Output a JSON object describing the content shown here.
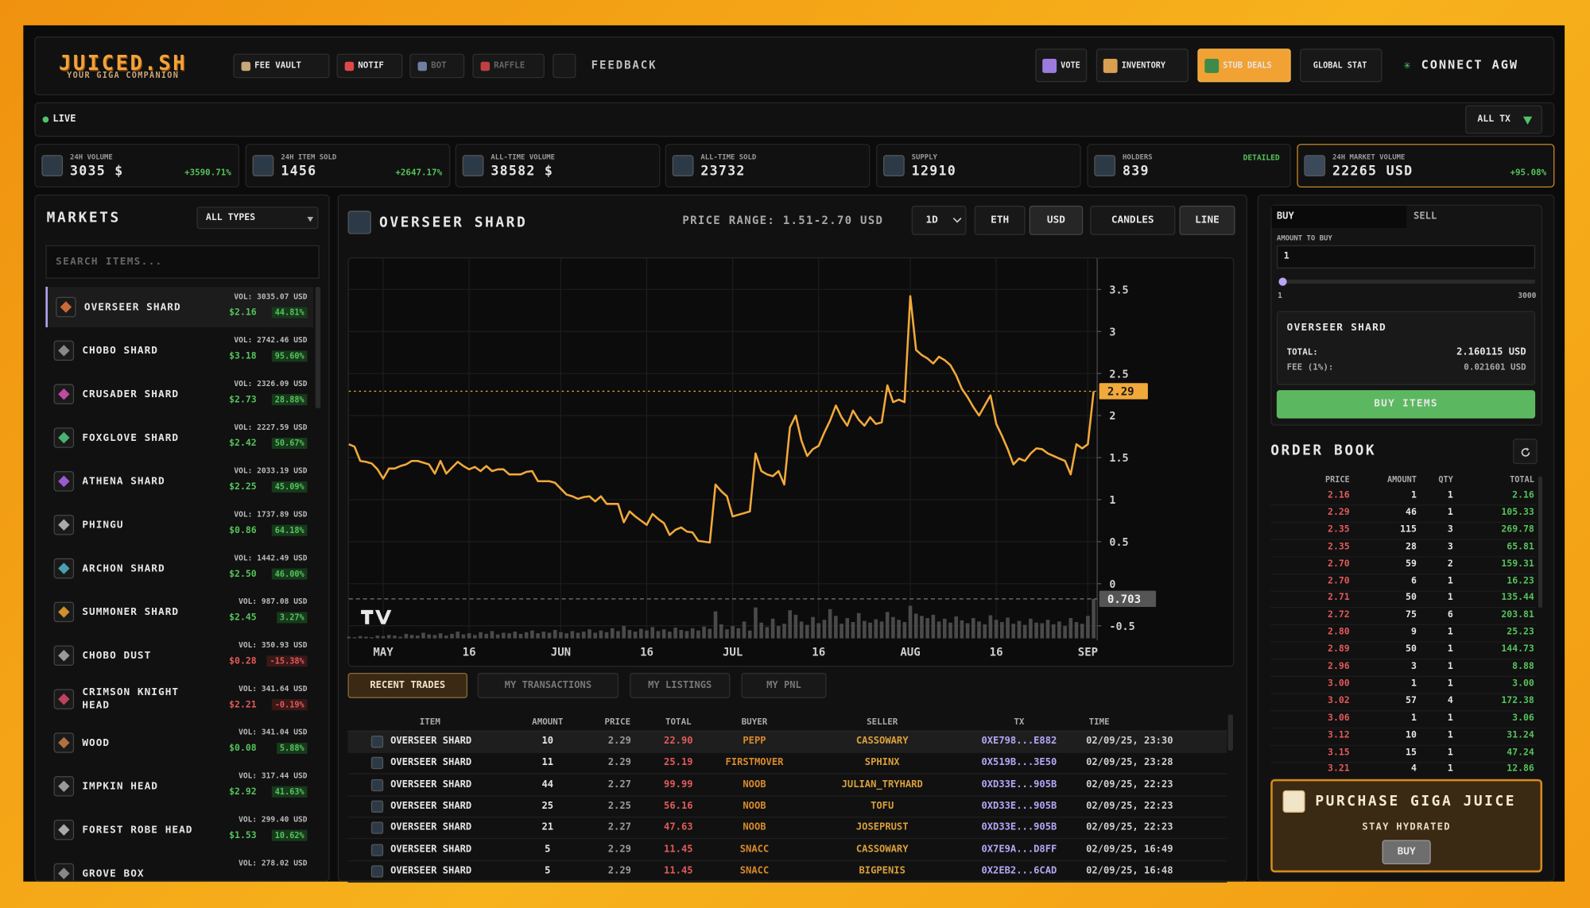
{
  "header": {
    "logo": "JUICED.SH",
    "tagline": "YOUR GIGA COMPANION",
    "nav": [
      "FEE VAULT",
      "NOTIF",
      "BOT",
      "RAFFLE"
    ],
    "feedback": "FEEDBACK",
    "actions": [
      "VOTE",
      "INVENTORY",
      "STUB DEALS",
      "GLOBAL STAT"
    ],
    "connect": "CONNECT AGW"
  },
  "live_bar": {
    "status": "LIVE",
    "filter": "ALL TX"
  },
  "stats": [
    {
      "label": "24H VOLUME",
      "value": "3035 $",
      "change": "+3590.71%"
    },
    {
      "label": "24H ITEM SOLD",
      "value": "1456",
      "change": "+2647.17%"
    },
    {
      "label": "ALL-TIME VOLUME",
      "value": "38582 $"
    },
    {
      "label": "ALL-TIME SOLD",
      "value": "23732"
    },
    {
      "label": "SUPPLY",
      "value": "12910"
    },
    {
      "label": "HOLDERS",
      "value": "839",
      "link": "DETAILED"
    },
    {
      "label": "24H MARKET VOLUME",
      "value": "22265 USD",
      "change": "+95.08%"
    }
  ],
  "markets": {
    "title": "MARKETS",
    "filter": "ALL TYPES",
    "search_placeholder": "SEARCH ITEMS...",
    "items": [
      {
        "name": "OVERSEER SHARD",
        "volume": "VOL: 3035.07 USD",
        "price": "$2.16",
        "change": "44.81%"
      },
      {
        "name": "CHOBO SHARD",
        "volume": "VOL: 2742.46 USD",
        "price": "$3.18",
        "change": "95.60%"
      },
      {
        "name": "CRUSADER SHARD",
        "volume": "VOL: 2326.09 USD",
        "price": "$2.73",
        "change": "28.88%"
      },
      {
        "name": "FOXGLOVE SHARD",
        "volume": "VOL: 2227.59 USD",
        "price": "$2.42",
        "change": "50.67%"
      },
      {
        "name": "ATHENA SHARD",
        "volume": "VOL: 2033.19 USD",
        "price": "$2.25",
        "change": "45.09%"
      },
      {
        "name": "PHINGU",
        "volume": "VOL: 1737.89 USD",
        "price": "$0.86",
        "change": "64.18%"
      },
      {
        "name": "ARCHON SHARD",
        "volume": "VOL: 1442.49 USD",
        "price": "$2.50",
        "change": "46.00%"
      },
      {
        "name": "SUMMONER SHARD",
        "volume": "VOL: 987.08 USD",
        "price": "$2.45",
        "change": "3.27%"
      },
      {
        "name": "CHOBO DUST",
        "volume": "VOL: 350.93 USD",
        "price": "$0.28",
        "change": "-15.38%"
      },
      {
        "name": "CRIMSON KNIGHT HEAD",
        "volume": "VOL: 341.64 USD",
        "price": "$2.21",
        "change": "-0.19%"
      },
      {
        "name": "WOOD",
        "volume": "VOL: 341.04 USD",
        "price": "$0.08",
        "change": "5.88%"
      },
      {
        "name": "IMPKIN HEAD",
        "volume": "VOL: 317.44 USD",
        "price": "$2.92",
        "change": "41.63%"
      },
      {
        "name": "FOREST ROBE HEAD",
        "volume": "VOL: 299.40 USD",
        "price": "$1.53",
        "change": "10.62%"
      },
      {
        "name": "GROVE BOX",
        "volume": "VOL: 278.02 USD"
      }
    ]
  },
  "chart_panel": {
    "interval": "1D",
    "currencies": [
      "ETH",
      "USD"
    ],
    "modes": [
      "CANDLES",
      "LINE"
    ]
  },
  "chart_data": {
    "type": "line",
    "title": "OVERSEER SHARD",
    "subtitle": "PRICE RANGE: 1.51-2.70 USD",
    "categories": [
      null,
      null,
      null,
      null,
      null,
      null,
      "MAY",
      null,
      null,
      null,
      null,
      null,
      null,
      null,
      null,
      null,
      null,
      null,
      null,
      null,
      null,
      "16",
      null,
      null,
      null,
      null,
      null,
      null,
      null,
      null,
      null,
      null,
      null,
      null,
      null,
      null,
      null,
      "JUN",
      null,
      null,
      null,
      null,
      null,
      null,
      null,
      null,
      null,
      null,
      null,
      null,
      null,
      null,
      "16",
      null,
      null,
      null,
      null,
      null,
      null,
      null,
      null,
      null,
      null,
      null,
      null,
      null,
      null,
      "JUL",
      null,
      null,
      null,
      null,
      null,
      null,
      null,
      null,
      null,
      null,
      null,
      null,
      null,
      null,
      "16",
      null,
      null,
      null,
      null,
      null,
      null,
      null,
      null,
      null,
      null,
      null,
      null,
      null,
      null,
      null,
      "AUG",
      null,
      null,
      null,
      null,
      null,
      null,
      null,
      null,
      null,
      null,
      null,
      null,
      null,
      null,
      "16",
      null,
      null,
      null,
      null,
      null,
      null,
      null,
      null,
      null,
      null,
      null,
      null,
      null,
      null,
      null,
      "SEP",
      null
    ],
    "series": [
      {
        "color": "#f2a93b",
        "values": [
          1.66,
          1.63,
          1.46,
          1.45,
          1.43,
          1.36,
          1.25,
          1.37,
          1.37,
          1.4,
          1.42,
          1.46,
          1.46,
          1.44,
          1.42,
          1.31,
          1.46,
          1.31,
          1.38,
          1.45,
          1.4,
          1.36,
          1.39,
          1.34,
          1.4,
          1.34,
          1.36,
          1.36,
          1.3,
          1.3,
          1.3,
          1.33,
          1.34,
          1.22,
          1.22,
          1.22,
          1.2,
          1.13,
          1.06,
          1.04,
          1.01,
          1.03,
          1.04,
          0.98,
          1.04,
          0.95,
          0.95,
          0.95,
          0.73,
          0.86,
          0.8,
          0.75,
          0.7,
          0.83,
          0.77,
          0.72,
          0.58,
          0.64,
          0.67,
          0.62,
          0.61,
          0.51,
          0.5,
          0.49,
          1.18,
          1.1,
          1.04,
          0.8,
          0.82,
          0.84,
          0.86,
          1.55,
          1.34,
          1.3,
          1.28,
          1.34,
          1.18,
          1.86,
          2.0,
          1.7,
          1.52,
          1.6,
          1.64,
          1.8,
          1.94,
          2.12,
          1.98,
          1.88,
          2.06,
          1.95,
          1.88,
          1.98,
          1.9,
          1.92,
          2.36,
          2.16,
          2.19,
          2.16,
          3.42,
          2.78,
          2.72,
          2.68,
          2.62,
          2.7,
          2.66,
          2.6,
          2.48,
          2.32,
          2.22,
          2.1,
          2.0,
          2.12,
          2.24,
          1.9,
          1.76,
          1.6,
          1.42,
          1.49,
          1.46,
          1.55,
          1.61,
          1.6,
          1.55,
          1.52,
          1.49,
          1.46,
          1.3,
          1.66,
          1.61,
          1.66,
          2.29
        ]
      },
      {
        "type": "bar",
        "axis": "y2",
        "color": "#4a4a4a",
        "values": [
          0.03,
          0.02,
          0.04,
          0.03,
          0.02,
          0.05,
          0.04,
          0.06,
          0.05,
          0.03,
          0.08,
          0.06,
          0.05,
          0.1,
          0.07,
          0.06,
          0.09,
          0.05,
          0.08,
          0.12,
          0.07,
          0.09,
          0.06,
          0.11,
          0.08,
          0.13,
          0.07,
          0.1,
          0.09,
          0.12,
          0.08,
          0.11,
          0.14,
          0.09,
          0.12,
          0.1,
          0.15,
          0.11,
          0.09,
          0.13,
          0.1,
          0.12,
          0.16,
          0.1,
          0.14,
          0.11,
          0.18,
          0.13,
          0.22,
          0.15,
          0.12,
          0.17,
          0.14,
          0.2,
          0.13,
          0.16,
          0.12,
          0.19,
          0.15,
          0.13,
          0.18,
          0.14,
          0.21,
          0.17,
          0.48,
          0.25,
          0.16,
          0.22,
          0.18,
          0.3,
          0.14,
          0.55,
          0.28,
          0.2,
          0.35,
          0.22,
          0.26,
          0.5,
          0.42,
          0.3,
          0.24,
          0.38,
          0.27,
          0.33,
          0.52,
          0.4,
          0.26,
          0.36,
          0.29,
          0.45,
          0.31,
          0.28,
          0.34,
          0.3,
          0.47,
          0.38,
          0.33,
          0.29,
          0.58,
          0.44,
          0.4,
          0.36,
          0.42,
          0.3,
          0.35,
          0.28,
          0.39,
          0.32,
          0.27,
          0.36,
          0.3,
          0.25,
          0.41,
          0.33,
          0.29,
          0.37,
          0.26,
          0.31,
          0.24,
          0.35,
          0.28,
          0.27,
          0.33,
          0.25,
          0.3,
          0.22,
          0.36,
          0.29,
          0.26,
          0.4,
          0.703
        ]
      }
    ],
    "ylim": [
      -0.65,
      3.87
    ],
    "yticks": [
      -0.5,
      0,
      0.5,
      1,
      1.5,
      2,
      2.5,
      3,
      3.5
    ],
    "y2lim": [
      0,
      6.76
    ],
    "grid": true
  },
  "trades": {
    "tabs": [
      "RECENT TRADES",
      "MY TRANSACTIONS",
      "MY LISTINGS",
      "MY PNL"
    ],
    "columns": [
      "ITEM",
      "AMOUNT",
      "PRICE",
      "TOTAL",
      "BUYER",
      "SELLER",
      "TX",
      "TIME"
    ],
    "rows": [
      [
        "OVERSEER SHARD",
        "10",
        "2.29",
        "22.90",
        "PEPP",
        "CASSOWARY",
        "0XE798...E882",
        "02/09/25, 23:30"
      ],
      [
        "OVERSEER SHARD",
        "11",
        "2.29",
        "25.19",
        "FIRSTMOVER",
        "SPHINX",
        "0X519B...3E50",
        "02/09/25, 23:28"
      ],
      [
        "OVERSEER SHARD",
        "44",
        "2.27",
        "99.99",
        "NOOB",
        "JULIAN_TRYHARD",
        "0XD33E...905B",
        "02/09/25, 22:23"
      ],
      [
        "OVERSEER SHARD",
        "25",
        "2.25",
        "56.16",
        "NOOB",
        "TOFU",
        "0XD33E...905B",
        "02/09/25, 22:23"
      ],
      [
        "OVERSEER SHARD",
        "21",
        "2.27",
        "47.63",
        "NOOB",
        "JOSEPRUST",
        "0XD33E...905B",
        "02/09/25, 22:23"
      ],
      [
        "OVERSEER SHARD",
        "5",
        "2.29",
        "11.45",
        "SNACC",
        "CASSOWARY",
        "0X7E9A...D8FF",
        "02/09/25, 16:49"
      ],
      [
        "OVERSEER SHARD",
        "5",
        "2.29",
        "11.45",
        "SNACC",
        "BIGPENIS",
        "0X2EB2...6CAD",
        "02/09/25, 16:48"
      ]
    ]
  },
  "buy_panel": {
    "tabs": [
      "BUY",
      "SELL"
    ],
    "amount_label": "AMOUNT TO BUY",
    "amount": "1",
    "slider_min": "1",
    "slider_max": "3000",
    "item": "OVERSEER SHARD",
    "total_label": "TOTAL:",
    "total": "2.160115 USD",
    "fee_label": "FEE (1%):",
    "fee": "0.021601 USD",
    "button": "BUY ITEMS"
  },
  "order_book": {
    "title": "ORDER BOOK",
    "columns": [
      "PRICE",
      "AMOUNT",
      "QTY",
      "TOTAL"
    ],
    "rows": [
      [
        "2.16",
        "1",
        "1",
        "2.16"
      ],
      [
        "2.29",
        "46",
        "1",
        "105.33"
      ],
      [
        "2.35",
        "115",
        "3",
        "269.78"
      ],
      [
        "2.35",
        "28",
        "3",
        "65.81"
      ],
      [
        "2.70",
        "59",
        "2",
        "159.31"
      ],
      [
        "2.70",
        "6",
        "1",
        "16.23"
      ],
      [
        "2.71",
        "50",
        "1",
        "135.44"
      ],
      [
        "2.72",
        "75",
        "6",
        "203.81"
      ],
      [
        "2.80",
        "9",
        "1",
        "25.23"
      ],
      [
        "2.89",
        "50",
        "1",
        "144.73"
      ],
      [
        "2.96",
        "3",
        "1",
        "8.88"
      ],
      [
        "3.00",
        "1",
        "1",
        "3.00"
      ],
      [
        "3.02",
        "57",
        "4",
        "172.38"
      ],
      [
        "3.06",
        "1",
        "1",
        "3.06"
      ],
      [
        "3.12",
        "10",
        "1",
        "31.24"
      ],
      [
        "3.15",
        "15",
        "1",
        "47.24"
      ],
      [
        "3.21",
        "4",
        "1",
        "12.86"
      ]
    ]
  },
  "promo": {
    "title": "PURCHASE GIGA JUICE",
    "subtitle": "STAY HYDRATED",
    "button": "BUY"
  }
}
